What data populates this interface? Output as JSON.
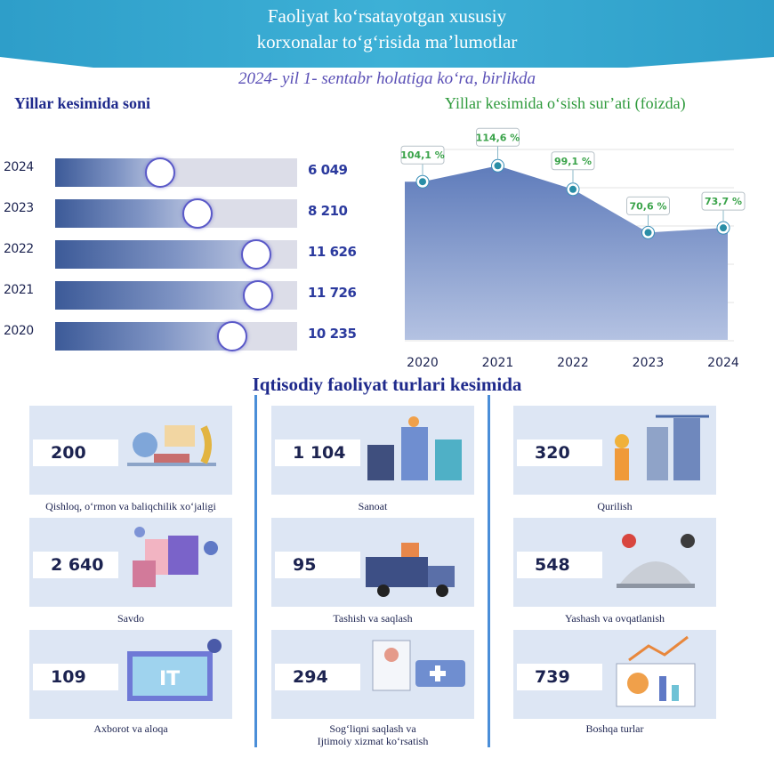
{
  "header": {
    "title_line1": "Faoliyat ko‘rsatayotgan xususiy",
    "title_line2": "korxonalar to‘g‘risida ma’lumotlar"
  },
  "subtitle": "2024- yil 1- sentabr holatiga ko‘ra, birlikda",
  "colors": {
    "header": "#3aa8d2",
    "navy": "#1f2a8c",
    "green": "#2e9a3c",
    "area": "#5a78b8",
    "card": "#dde6f4"
  },
  "chart_data": [
    {
      "type": "bar",
      "orientation": "horizontal",
      "title": "Yillar kesimida soni",
      "categories": [
        "2024",
        "2023",
        "2022",
        "2021",
        "2020"
      ],
      "values": [
        6049,
        8210,
        11626,
        11726,
        10235
      ],
      "value_labels": [
        "6 049",
        "8 210",
        "11 626",
        "11 726",
        "10 235"
      ],
      "xlim": [
        0,
        14000
      ]
    },
    {
      "type": "area",
      "title": "Yillar kesimida o‘sish sur’ati (foizda)",
      "x": [
        "2020",
        "2021",
        "2022",
        "2023",
        "2024"
      ],
      "values": [
        104.1,
        114.6,
        99.1,
        70.6,
        73.7
      ],
      "value_labels": [
        "104,1 %",
        "114,6 %",
        "99,1 %",
        "70,6 %",
        "73,7 %"
      ],
      "ylim": [
        0,
        130
      ],
      "grid": true
    }
  ],
  "section_title": "Iqtisodiy faoliyat turlari kesimida",
  "activities": [
    {
      "value": "200",
      "label": "Qishloq, o‘rmon va baliqchilik xo‘jaligi",
      "icon": "agriculture-icon"
    },
    {
      "value": "1 104",
      "label": "Sanoat",
      "icon": "industry-icon"
    },
    {
      "value": "320",
      "label": "Qurilish",
      "icon": "construction-icon"
    },
    {
      "value": "2 640",
      "label": "Savdo",
      "icon": "shopping-icon"
    },
    {
      "value": "95",
      "label": "Tashish va saqlash",
      "icon": "truck-icon"
    },
    {
      "value": "548",
      "label": "Yashash va ovqatlanish",
      "icon": "hotel-food-icon"
    },
    {
      "value": "109",
      "label": "Axborot va aloqa",
      "icon": "it-icon"
    },
    {
      "value": "294",
      "label": "Sog‘liqni saqlash va\nIjtimoiy xizmat ko‘rsatish",
      "icon": "healthcare-icon"
    },
    {
      "value": "739",
      "label": "Boshqa turlar",
      "icon": "analytics-icon"
    }
  ]
}
